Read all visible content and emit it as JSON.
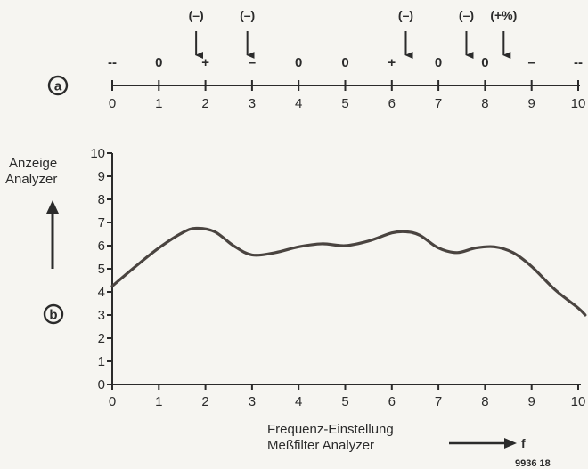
{
  "panel_a": {
    "label": "a",
    "ticks": [
      "0",
      "1",
      "2",
      "3",
      "4",
      "5",
      "6",
      "7",
      "8",
      "9",
      "10"
    ],
    "signs": [
      {
        "x": 0.0,
        "text": "--"
      },
      {
        "x": 1.0,
        "text": "0"
      },
      {
        "x": 2.0,
        "text": "+"
      },
      {
        "x": 3.0,
        "text": "–"
      },
      {
        "x": 4.0,
        "text": "0"
      },
      {
        "x": 5.0,
        "text": "0"
      },
      {
        "x": 6.0,
        "text": "+"
      },
      {
        "x": 7.0,
        "text": "0"
      },
      {
        "x": 8.0,
        "text": "0"
      },
      {
        "x": 9.0,
        "text": "–"
      },
      {
        "x": 10.0,
        "text": "--"
      }
    ],
    "markers": [
      {
        "x": 1.8,
        "text": "(–)"
      },
      {
        "x": 2.9,
        "text": "(–)"
      },
      {
        "x": 6.3,
        "text": "(–)"
      },
      {
        "x": 7.6,
        "text": "(–)"
      },
      {
        "x": 8.4,
        "text": "(+%)"
      }
    ]
  },
  "panel_b": {
    "label": "b",
    "ylabel_line1": "Anzeige",
    "ylabel_line2": "Analyzer",
    "xlabel_line1": "Frequenz-Einstellung",
    "xlabel_line2": "Meßfilter Analyzer",
    "f_label": "f",
    "figure_id": "9936 18"
  },
  "chart_data": {
    "type": "line",
    "x_ticks": [
      "0",
      "1",
      "2",
      "3",
      "4",
      "5",
      "6",
      "7",
      "8",
      "9",
      "10"
    ],
    "y_ticks": [
      "0",
      "1",
      "2",
      "3",
      "4",
      "5",
      "6",
      "7",
      "8",
      "9",
      "10"
    ],
    "xlim": [
      0,
      10
    ],
    "ylim": [
      0,
      10
    ],
    "x": [
      0,
      0.5,
      1.0,
      1.5,
      1.8,
      2.2,
      2.6,
      3.0,
      3.5,
      4.0,
      4.5,
      5.0,
      5.5,
      6.0,
      6.3,
      6.6,
      7.0,
      7.4,
      7.8,
      8.2,
      8.6,
      9.0,
      9.5,
      10.0,
      10.15
    ],
    "y": [
      4.25,
      5.1,
      5.9,
      6.55,
      6.75,
      6.6,
      6.0,
      5.6,
      5.7,
      5.95,
      6.08,
      6.0,
      6.2,
      6.55,
      6.6,
      6.45,
      5.9,
      5.7,
      5.9,
      5.95,
      5.7,
      5.1,
      4.1,
      3.3,
      3.0
    ]
  }
}
